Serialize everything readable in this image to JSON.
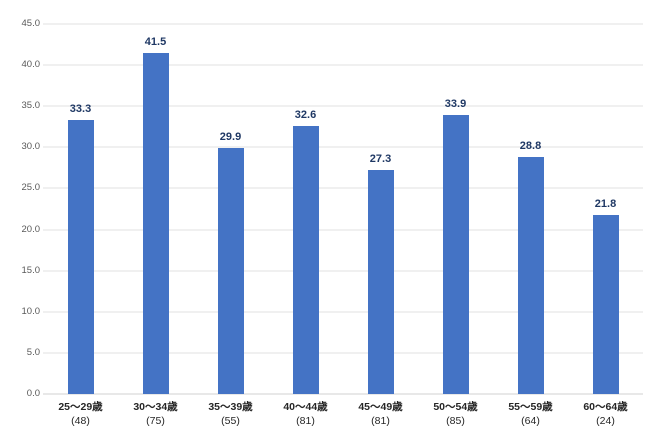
{
  "chart_data": {
    "type": "bar",
    "title": "",
    "xlabel": "",
    "ylabel": "",
    "categories": [
      "25〜29歳",
      "30〜34歳",
      "35〜39歳",
      "40〜44歳",
      "45〜49歳",
      "50〜54歳",
      "55〜59歳",
      "60〜64歳"
    ],
    "category_counts": [
      "(48)",
      "(75)",
      "(55)",
      "(81)",
      "(81)",
      "(85)",
      "(64)",
      "(24)"
    ],
    "values": [
      33.3,
      41.5,
      29.9,
      32.6,
      27.3,
      33.9,
      28.8,
      21.8
    ],
    "data_labels": [
      "33.3",
      "41.5",
      "29.9",
      "32.6",
      "27.3",
      "33.9",
      "28.8",
      "21.8"
    ],
    "ylim": [
      0,
      45
    ],
    "ytick_step": 5,
    "ytick_labels": [
      "0.0",
      "5.0",
      "10.0",
      "15.0",
      "20.0",
      "25.0",
      "30.0",
      "35.0",
      "40.0",
      "45.0"
    ],
    "grid": true,
    "legend": false,
    "colors": {
      "bar": "#4473C5",
      "data_label": "#1F3864",
      "axis_label": "#595959",
      "category_label": "#262626",
      "gridline": "#e2e2e2",
      "baseline": "#d0d0d0",
      "background": "#ffffff"
    }
  }
}
